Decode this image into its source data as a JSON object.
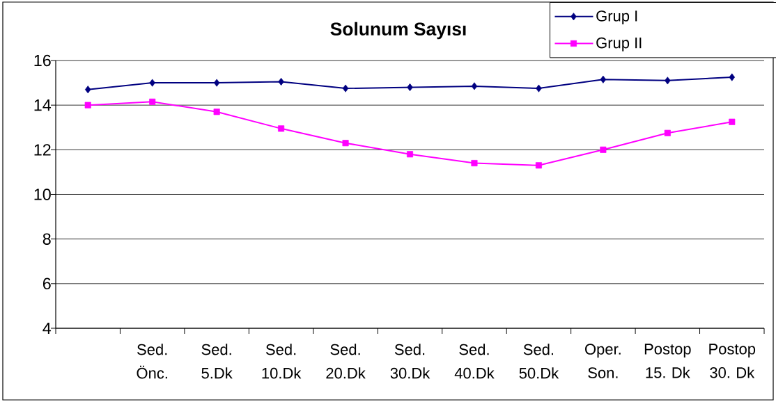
{
  "chart_data": {
    "type": "line",
    "title": "Solunum Sayısı",
    "categories": [
      null,
      "Sed. Önc.",
      "Sed. 5.Dk",
      "Sed. 10.Dk",
      "Sed. 20.Dk",
      "Sed. 30.Dk",
      "Sed. 40.Dk",
      "Sed. 50.Dk",
      "Oper. Son.",
      "Postop 15. Dk",
      "Postop 30. Dk"
    ],
    "series": [
      {
        "name": "Grup I",
        "color": "#000080",
        "marker": "diamond",
        "values": [
          14.7,
          15.0,
          15.0,
          15.05,
          14.75,
          14.8,
          14.85,
          14.75,
          15.15,
          15.1,
          15.25
        ]
      },
      {
        "name": "Grup II",
        "color": "#ff00ff",
        "marker": "square",
        "values": [
          14.0,
          14.15,
          13.7,
          12.95,
          12.3,
          11.8,
          11.4,
          11.3,
          12.0,
          12.75,
          13.25
        ]
      }
    ],
    "ylim": [
      4,
      16
    ],
    "yticks": [
      4,
      6,
      8,
      10,
      12,
      14,
      16
    ],
    "grid": "y",
    "legend": "top right"
  }
}
